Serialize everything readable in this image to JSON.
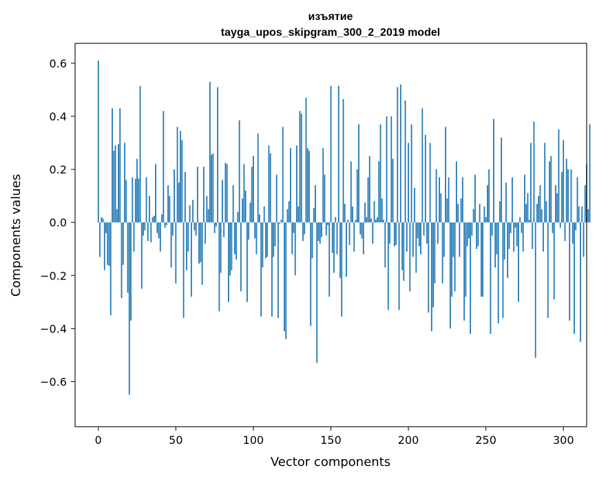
{
  "chart_data": {
    "type": "bar",
    "title": "изъятие",
    "subtitle": "tayga_upos_skipgram_300_2_2019 model",
    "xlabel": "Vector components",
    "ylabel": "Components values",
    "xlim": [
      -15,
      315
    ],
    "ylim": [
      -0.77,
      0.675
    ],
    "xticks": [
      0,
      50,
      100,
      150,
      200,
      250,
      300
    ],
    "xtick_labels": [
      "0",
      "50",
      "100",
      "150",
      "200",
      "250",
      "300"
    ],
    "yticks": [
      -0.6,
      -0.4,
      -0.2,
      0.0,
      0.2,
      0.4,
      0.6
    ],
    "ytick_labels": [
      "−0.6",
      "−0.4",
      "−0.2",
      "0.0",
      "0.2",
      "0.4",
      "0.6"
    ],
    "bar_color": "#1f77b4",
    "grid": false,
    "x_start": 0,
    "values": [
      0.61,
      -0.13,
      0.02,
      0.015,
      -0.18,
      -0.04,
      -0.16,
      -0.165,
      -0.35,
      0.43,
      0.27,
      0.29,
      0.05,
      0.295,
      0.43,
      -0.285,
      -0.16,
      0.3,
      0.16,
      -0.265,
      -0.65,
      -0.37,
      0.17,
      -0.11,
      0.165,
      0.24,
      0.165,
      0.515,
      -0.25,
      -0.05,
      -0.03,
      0.17,
      -0.07,
      0.1,
      -0.075,
      0.02,
      0.025,
      0.22,
      -0.04,
      -0.06,
      -0.11,
      0.03,
      0.42,
      -0.02,
      -0.01,
      0.14,
      0.1,
      -0.17,
      -0.05,
      0.2,
      -0.23,
      0.36,
      0.15,
      0.345,
      0.31,
      -0.36,
      0.19,
      -0.18,
      -0.11,
      0.065,
      -0.28,
      0.085,
      -0.03,
      -0.05,
      0.21,
      -0.155,
      -0.15,
      -0.235,
      0.21,
      -0.08,
      0.1,
      0.05,
      0.53,
      0.255,
      0.26,
      -0.04,
      -0.015,
      0.51,
      -0.335,
      -0.19,
      0.16,
      -0.055,
      0.225,
      0.22,
      -0.3,
      -0.2,
      -0.18,
      0.14,
      -0.12,
      -0.14,
      0.04,
      0.385,
      -0.26,
      0.09,
      0.22,
      0.12,
      -0.3,
      -0.065,
      0.075,
      0.21,
      0.25,
      -0.06,
      -0.12,
      0.335,
      0.03,
      -0.355,
      -0.17,
      0.06,
      -0.135,
      -0.13,
      0.29,
      0.26,
      -0.355,
      -0.13,
      -0.09,
      0.18,
      -0.36,
      -0.005,
      0.01,
      0.36,
      -0.41,
      -0.44,
      0.05,
      0.08,
      0.28,
      -0.12,
      -0.04,
      -0.2,
      0.29,
      0.06,
      0.42,
      0.41,
      -0.07,
      -0.045,
      0.47,
      0.28,
      0.27,
      -0.39,
      -0.135,
      0.055,
      0.14,
      -0.53,
      -0.07,
      -0.08,
      -0.055,
      0.28,
      0.18,
      -0.05,
      -0.01,
      -0.28,
      0.515,
      -0.115,
      -0.19,
      0.02,
      -0.12,
      0.515,
      -0.21,
      -0.355,
      0.465,
      0.07,
      -0.205,
      0.01,
      -0.085,
      0.23,
      0.06,
      -0.11,
      0.01,
      0.2,
      0.37,
      -0.045,
      -0.06,
      -0.12,
      0.075,
      0.02,
      0.17,
      0.25,
      0.015,
      -0.08,
      0.08,
      0.01,
      0.02,
      0.23,
      0.37,
      0.09,
      0.01,
      -0.17,
      0.4,
      -0.33,
      -0.08,
      0.4,
      0.24,
      -0.09,
      -0.085,
      0.51,
      -0.33,
      0.52,
      -0.18,
      -0.22,
      0.46,
      -0.11,
      0.3,
      -0.26,
      0.37,
      -0.13,
      0.13,
      -0.19,
      -0.06,
      -0.09,
      -0.12,
      0.43,
      -0.05,
      0.33,
      -0.08,
      -0.34,
      0.3,
      -0.41,
      -0.32,
      -0.23,
      0.2,
      -0.08,
      0.17,
      0.11,
      -0.23,
      -0.13,
      0.36,
      0.09,
      0.17,
      -0.4,
      -0.28,
      -0.13,
      -0.26,
      0.23,
      0.07,
      -0.13,
      0.09,
      0.17,
      -0.37,
      -0.28,
      -0.09,
      -0.06,
      -0.42,
      -0.05,
      0.05,
      0.18,
      -0.1,
      -0.09,
      0.07,
      -0.28,
      -0.28,
      0.06,
      0.02,
      0.14,
      0.2,
      -0.42,
      -0.05,
      0.39,
      -0.17,
      -0.12,
      -0.38,
      0.08,
      0.32,
      -0.36,
      -0.14,
      0.15,
      -0.21,
      -0.1,
      -0.04,
      0.17,
      -0.11,
      -0.02,
      -0.09,
      -0.3,
      0.02,
      -0.04,
      -0.11,
      0.18,
      0.07,
      0.11,
      0.01,
      0.3,
      -0.1,
      0.38,
      -0.51,
      0.07,
      0.1,
      0.14,
      0.05,
      -0.11,
      0.3,
      0.08,
      -0.36,
      0.23,
      0.25,
      -0.04,
      -0.29,
      0.14,
      0.11,
      0.35,
      -0.02,
      0.19,
      0.31,
      -0.07,
      0.24,
      0.2,
      -0.37,
      0.2,
      -0.08,
      -0.42,
      -0.03,
      0.17,
      0.06,
      -0.45,
      0.06,
      -0.13,
      0.14,
      0.22,
      0.05,
      0.37
    ]
  }
}
